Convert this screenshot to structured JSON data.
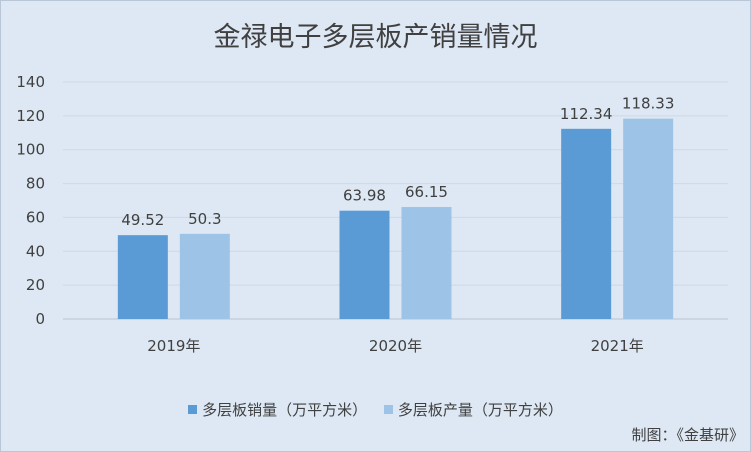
{
  "chart_data": {
    "type": "bar",
    "title": "金禄电子多层板产销量情况",
    "categories": [
      "2019年",
      "2020年",
      "2021年"
    ],
    "series": [
      {
        "name": "多层板销量（万平方米）",
        "values": [
          49.52,
          63.98,
          112.34
        ],
        "color": "#5b9bd5"
      },
      {
        "name": "多层板产量（万平方米）",
        "values": [
          50.3,
          66.15,
          118.33
        ],
        "color": "#9dc3e6"
      }
    ],
    "value_labels": [
      [
        "49.52",
        "63.98",
        "112.34"
      ],
      [
        "50.3",
        "66.15",
        "118.33"
      ]
    ],
    "ylim": [
      0,
      140
    ],
    "yticks": [
      0,
      20,
      40,
      60,
      80,
      100,
      120,
      140
    ],
    "grid": true,
    "legend_position": "bottom"
  },
  "source_note": "制图：《金基研》",
  "colors": {
    "background": "#dde8f4",
    "gridline": "#cfd8e3",
    "text": "#404040"
  }
}
